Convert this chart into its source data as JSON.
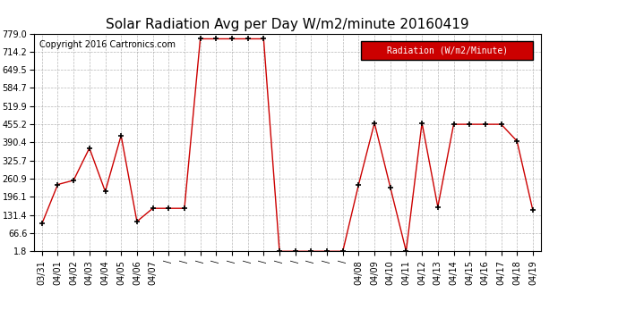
{
  "title": "Solar Radiation Avg per Day W/m2/minute 20160419",
  "copyright": "Copyright 2016 Cartronics.com",
  "legend_label": "Radiation (W/m2/Minute)",
  "background_color": "#ffffff",
  "plot_bg_color": "#ffffff",
  "line_color": "#cc0000",
  "marker_color": "#000000",
  "legend_bg": "#cc0000",
  "legend_text_color": "#ffffff",
  "x_labels_named": [
    "03/31",
    "04/01",
    "04/02",
    "04/03",
    "04/04",
    "04/05",
    "04/06",
    "04/07",
    "/",
    "/",
    "/",
    "/",
    "/",
    "/",
    "/",
    "/",
    "/",
    "/",
    "/",
    "/",
    "04/08",
    "04/09",
    "04/10",
    "04/11",
    "04/12",
    "04/13",
    "04/14",
    "04/15",
    "04/16",
    "04/17",
    "04/18",
    "04/19"
  ],
  "y_data": [
    100.0,
    240.0,
    255.0,
    370.0,
    215.0,
    415.0,
    108.0,
    155.0,
    155.0,
    155.0,
    760.0,
    760.0,
    760.0,
    760.0,
    760.0,
    1.8,
    1.8,
    1.8,
    1.8,
    1.8,
    240.0,
    460.0,
    230.0,
    1.8,
    460.0,
    160.0,
    455.0,
    455.0,
    455.0,
    455.0,
    395.0,
    148.0
  ],
  "ylim_min": 1.8,
  "ylim_max": 779.0,
  "yticks": [
    1.8,
    66.6,
    131.4,
    196.1,
    260.9,
    325.7,
    390.4,
    455.2,
    519.9,
    584.7,
    649.5,
    714.2,
    779.0
  ],
  "grid_color": "#999999",
  "title_fontsize": 11,
  "copyright_fontsize": 7,
  "tick_fontsize": 7
}
